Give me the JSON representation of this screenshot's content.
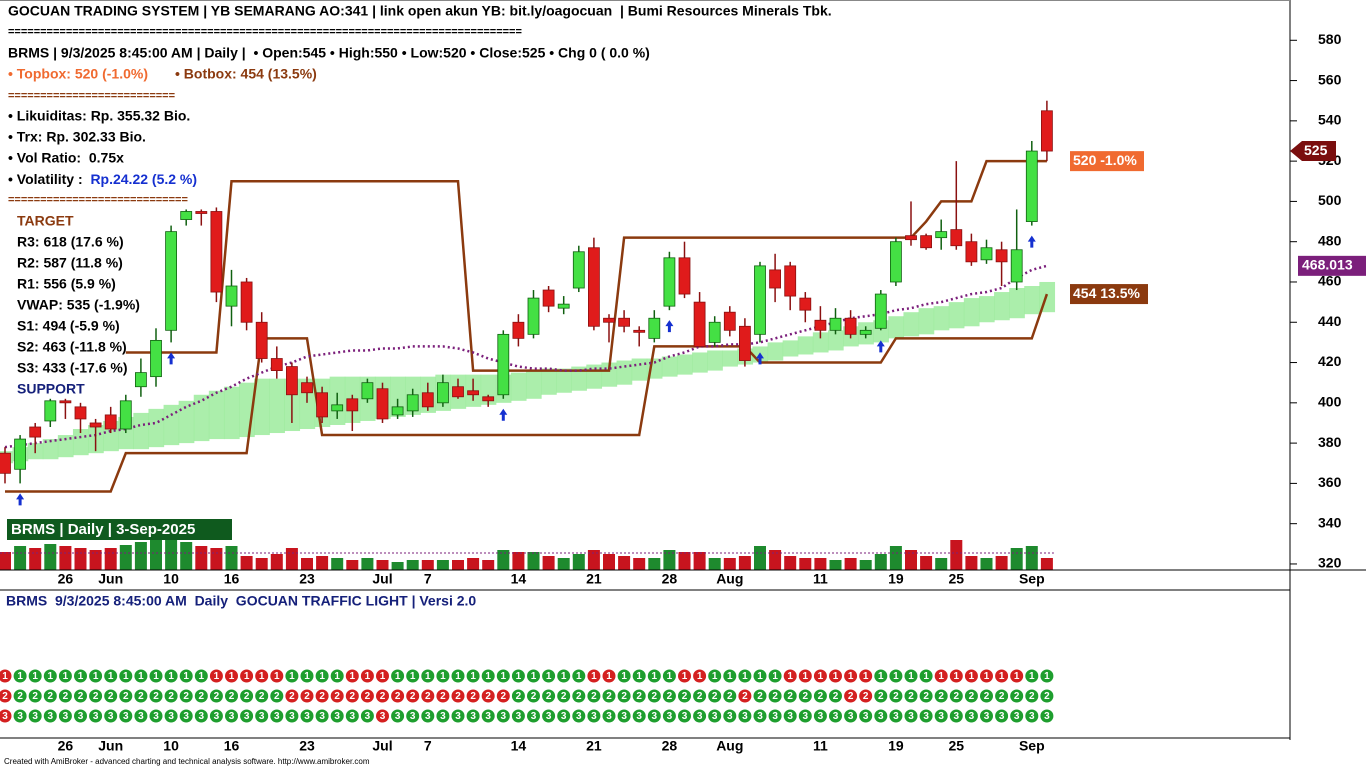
{
  "chart_data": {
    "type": "candlestick",
    "title": "GOCUAN TRADING SYSTEM | YB SEMARANG AO:341 | link open akun YB: bit.ly/oagocuan  | Bumi Resources Minerals Tbk.",
    "separator_1": "================================================================================",
    "info": "BRMS | 9/3/2025 8:45:00 AM | Daily |  • Open:545 • High:550 • Low:520 • Close:525 • Chg 0 ( 0.0 %)",
    "topbox_text": "• Topbox: 520 (-1.0%)",
    "botbox_text": "• Botbox: 454 (13.5%)",
    "separator_2": "==========================",
    "stats": [
      "• Likuiditas: Rp. 355.32 Bio.",
      "• Trx: Rp. 302.33 Bio.",
      "• Vol Ratio:  0.75x"
    ],
    "volatility_label": "• Volatility :  ",
    "volatility_value": "Rp.24.22 (5.2 %)",
    "separator_3": "============================",
    "target_title": "TARGET",
    "levels": [
      "R3: 618 (17.6 %)",
      "R2: 587 (11.8 %)",
      "R1: 556 (5.9 %)",
      "VWAP: 535 (-1.9%)",
      "S1: 494 (-5.9 %)",
      "S2: 463 (-11.8 %)",
      "S3: 433 (-17.6 %)"
    ],
    "support_title": "SUPPORT",
    "topbox_label": "520 -1.0%",
    "botbox_label": "454 13.5%",
    "volume_title": "BRMS | Daily | 3-Sep-2025",
    "footer": "Created with AmiBroker - advanced charting and technical analysis software. http://www.amibroker.com",
    "categories": [
      null,
      null,
      null,
      null,
      "26",
      null,
      null,
      "Jun",
      null,
      null,
      null,
      "10",
      null,
      null,
      null,
      "16",
      null,
      null,
      null,
      null,
      "23",
      null,
      null,
      null,
      null,
      "Jul",
      null,
      null,
      "7",
      null,
      null,
      null,
      null,
      null,
      "14",
      null,
      null,
      null,
      null,
      "21",
      null,
      null,
      null,
      null,
      "28",
      null,
      null,
      null,
      "Aug",
      null,
      null,
      null,
      null,
      null,
      "11",
      null,
      null,
      null,
      null,
      "19",
      null,
      null,
      null,
      "25",
      null,
      null,
      null,
      null,
      "Sep",
      null
    ],
    "open": [
      375,
      367,
      388,
      391,
      401,
      398,
      390,
      394,
      387,
      408,
      413,
      436,
      491,
      495,
      495,
      448,
      460,
      440,
      422,
      418,
      410,
      405,
      396,
      402,
      402,
      407,
      394,
      396,
      405,
      400,
      408,
      406,
      403,
      404,
      440,
      434,
      456,
      447,
      457,
      477,
      442,
      442,
      436,
      432,
      448,
      472,
      450,
      430,
      445,
      438,
      434,
      466,
      468,
      452,
      441,
      436,
      442,
      434,
      437,
      460,
      483,
      483,
      482,
      486,
      480,
      471,
      476,
      460,
      490,
      545
    ],
    "high": [
      378,
      384,
      390,
      402,
      402,
      400,
      392,
      398,
      404,
      422,
      437,
      488,
      496,
      496,
      497,
      466,
      462,
      445,
      428,
      420,
      413,
      408,
      405,
      404,
      412,
      410,
      402,
      407,
      410,
      414,
      412,
      412,
      404,
      436,
      444,
      456,
      458,
      453,
      478,
      482,
      444,
      446,
      438,
      446,
      475,
      480,
      455,
      443,
      448,
      442,
      470,
      474,
      470,
      455,
      448,
      447,
      446,
      438,
      456,
      482,
      500,
      484,
      491,
      520,
      484,
      481,
      480,
      496,
      530,
      550
    ],
    "low": [
      360,
      360,
      375,
      388,
      392,
      385,
      376,
      385,
      385,
      403,
      408,
      430,
      488,
      488,
      450,
      438,
      436,
      420,
      412,
      390,
      400,
      390,
      392,
      386,
      400,
      390,
      392,
      393,
      396,
      398,
      402,
      401,
      398,
      402,
      428,
      432,
      445,
      444,
      455,
      436,
      430,
      435,
      428,
      430,
      446,
      452,
      428,
      428,
      433,
      418,
      430,
      450,
      446,
      440,
      432,
      434,
      432,
      432,
      436,
      458,
      478,
      476,
      476,
      476,
      468,
      469,
      458,
      456,
      488,
      520
    ],
    "close": [
      365,
      382,
      383,
      401,
      400,
      392,
      388,
      387,
      401,
      415,
      431,
      485,
      495,
      494,
      455,
      458,
      440,
      422,
      416,
      404,
      405,
      393,
      399,
      396,
      410,
      392,
      398,
      404,
      398,
      410,
      403,
      404,
      401,
      434,
      432,
      452,
      448,
      449,
      475,
      438,
      440,
      438,
      435,
      442,
      472,
      454,
      428,
      440,
      436,
      421,
      468,
      457,
      453,
      446,
      436,
      442,
      434,
      436,
      454,
      480,
      481,
      477,
      485,
      478,
      470,
      477,
      470,
      476,
      525,
      525
    ],
    "up_color": "#44e044",
    "down_color": "#e01b1b",
    "topbox_line": [
      null,
      null,
      null,
      null,
      null,
      null,
      null,
      null,
      425,
      425,
      425,
      425,
      425,
      425,
      425,
      510,
      510,
      510,
      510,
      510,
      510,
      510,
      510,
      510,
      510,
      510,
      510,
      510,
      510,
      510,
      510,
      416,
      416,
      416,
      416,
      416,
      416,
      416,
      416,
      416,
      416,
      482,
      482,
      482,
      482,
      482,
      482,
      482,
      482,
      482,
      482,
      482,
      482,
      482,
      482,
      482,
      482,
      482,
      482,
      482,
      482,
      490,
      500,
      500,
      500,
      520,
      520,
      520,
      520,
      520
    ],
    "botbox_line": [
      356,
      356,
      356,
      356,
      356,
      356,
      356,
      356,
      375,
      375,
      375,
      375,
      375,
      375,
      375,
      375,
      375,
      432,
      432,
      432,
      432,
      384,
      384,
      384,
      384,
      384,
      384,
      384,
      384,
      384,
      384,
      384,
      384,
      384,
      384,
      384,
      384,
      384,
      384,
      384,
      384,
      384,
      384,
      428,
      428,
      428,
      428,
      428,
      428,
      428,
      420,
      420,
      420,
      420,
      420,
      420,
      420,
      420,
      420,
      432,
      432,
      432,
      432,
      432,
      432,
      432,
      432,
      432,
      432,
      454
    ],
    "box_color": "#8b3a0f",
    "ma_line": [
      378,
      379,
      380,
      381,
      382,
      383,
      384,
      386,
      387,
      389,
      390,
      394,
      398,
      401,
      405,
      408,
      412,
      415,
      418,
      420,
      423,
      424,
      425,
      426,
      426,
      427,
      427,
      428,
      428,
      428,
      427,
      425,
      422,
      420,
      418,
      417,
      417,
      416,
      416,
      417,
      417,
      418,
      419,
      420,
      423,
      425,
      428,
      428,
      429,
      429,
      430,
      432,
      434,
      436,
      438,
      440,
      442,
      443,
      444,
      446,
      447,
      449,
      450,
      452,
      454,
      455,
      457,
      462,
      466,
      468.013
    ],
    "ma_color": "#7b1f7b",
    "ribbon_upper": [
      376,
      378,
      380,
      382,
      384,
      387,
      389,
      391,
      393,
      395,
      397,
      399,
      401,
      404,
      406,
      408,
      410,
      412,
      412,
      412,
      412,
      412,
      413,
      413,
      413,
      413,
      413,
      413,
      413,
      414,
      414,
      414,
      414,
      414,
      415,
      416,
      417,
      417,
      418,
      419,
      420,
      421,
      422,
      422,
      423,
      424,
      425,
      426,
      426,
      427,
      428,
      430,
      431,
      433,
      435,
      436,
      438,
      440,
      441,
      443,
      445,
      447,
      448,
      450,
      452,
      453,
      455,
      457,
      458,
      460
    ],
    "ribbon_lower": [
      370,
      371,
      372,
      372,
      373,
      374,
      375,
      376,
      377,
      377,
      378,
      379,
      380,
      381,
      382,
      382,
      383,
      384,
      385,
      386,
      387,
      388,
      389,
      390,
      391,
      392,
      393,
      394,
      395,
      396,
      397,
      398,
      399,
      400,
      401,
      402,
      404,
      405,
      406,
      407,
      408,
      409,
      411,
      412,
      413,
      414,
      415,
      416,
      418,
      419,
      420,
      421,
      423,
      424,
      425,
      426,
      428,
      429,
      430,
      432,
      433,
      434,
      436,
      437,
      438,
      440,
      441,
      442,
      444,
      445
    ],
    "ribbon_color": "#9ceb9c",
    "buy_signals": [
      1,
      11,
      33,
      44,
      50,
      58,
      68
    ],
    "signal_color": "#1530d0",
    "volume": [
      18,
      24,
      22,
      26,
      24,
      22,
      20,
      22,
      25,
      28,
      30,
      30,
      28,
      24,
      22,
      24,
      14,
      12,
      16,
      22,
      12,
      14,
      12,
      10,
      12,
      10,
      8,
      10,
      10,
      10,
      10,
      12,
      10,
      20,
      18,
      18,
      14,
      12,
      16,
      20,
      16,
      14,
      12,
      12,
      20,
      18,
      18,
      12,
      12,
      14,
      24,
      20,
      14,
      12,
      12,
      10,
      12,
      10,
      16,
      24,
      20,
      14,
      12,
      30,
      14,
      12,
      14,
      22,
      24,
      12
    ],
    "volume_avg": 17,
    "ylim": [
      317,
      600
    ],
    "yticks": [
      320,
      340,
      360,
      380,
      400,
      420,
      440,
      460,
      480,
      500,
      520,
      540,
      560,
      580
    ]
  },
  "traffic_light": {
    "title": "BRMS  9/3/2025 8:45:00 AM  Daily  GOCUAN TRAFFIC LIGHT | Versi 2.0",
    "colors": {
      "green": "#1e9e2e",
      "red": "#d42020"
    },
    "rows": [
      {
        "label": "1",
        "states": [
          "red",
          "green",
          "green",
          "green",
          "green",
          "green",
          "green",
          "green",
          "green",
          "green",
          "green",
          "green",
          "green",
          "green",
          "red",
          "red",
          "red",
          "red",
          "red",
          "green",
          "green",
          "green",
          "green",
          "red",
          "red",
          "red",
          "green",
          "green",
          "green",
          "green",
          "green",
          "green",
          "green",
          "green",
          "green",
          "green",
          "green",
          "green",
          "green",
          "red",
          "red",
          "green",
          "green",
          "green",
          "green",
          "red",
          "red",
          "green",
          "green",
          "green",
          "green",
          "green",
          "red",
          "red",
          "red",
          "red",
          "red",
          "red",
          "green",
          "green",
          "green",
          "green",
          "red",
          "red",
          "red",
          "red",
          "red",
          "red",
          "green",
          "green"
        ]
      },
      {
        "label": "2",
        "states": [
          "red",
          "green",
          "green",
          "green",
          "green",
          "green",
          "green",
          "green",
          "green",
          "green",
          "green",
          "green",
          "green",
          "green",
          "green",
          "green",
          "green",
          "green",
          "green",
          "red",
          "red",
          "red",
          "red",
          "red",
          "red",
          "red",
          "red",
          "red",
          "red",
          "red",
          "red",
          "red",
          "red",
          "red",
          "green",
          "green",
          "green",
          "green",
          "green",
          "green",
          "green",
          "green",
          "green",
          "green",
          "green",
          "green",
          "green",
          "green",
          "green",
          "red",
          "green",
          "green",
          "green",
          "green",
          "green",
          "green",
          "red",
          "red",
          "green",
          "green",
          "green",
          "green",
          "green",
          "green",
          "green",
          "green",
          "green",
          "green",
          "green",
          "green"
        ]
      },
      {
        "label": "3",
        "states": [
          "red",
          "green",
          "green",
          "green",
          "green",
          "green",
          "green",
          "green",
          "green",
          "green",
          "green",
          "green",
          "green",
          "green",
          "green",
          "green",
          "green",
          "green",
          "green",
          "green",
          "green",
          "green",
          "green",
          "green",
          "green",
          "red",
          "green",
          "green",
          "green",
          "green",
          "green",
          "green",
          "green",
          "green",
          "green",
          "green",
          "green",
          "green",
          "green",
          "green",
          "green",
          "green",
          "green",
          "green",
          "green",
          "green",
          "green",
          "green",
          "green",
          "green",
          "green",
          "green",
          "green",
          "green",
          "green",
          "green",
          "green",
          "green",
          "green",
          "green",
          "green",
          "green",
          "green",
          "green",
          "green",
          "green",
          "green",
          "green",
          "green",
          "green"
        ]
      }
    ]
  }
}
